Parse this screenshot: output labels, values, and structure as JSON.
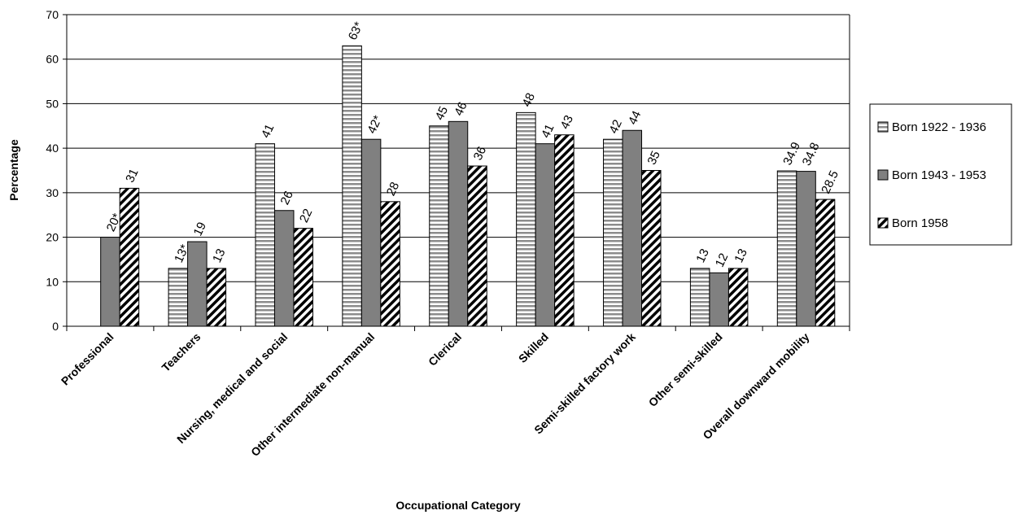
{
  "chart_data": {
    "type": "bar",
    "title": "",
    "xlabel": "Occupational Category",
    "ylabel": "Percentage",
    "ylim": [
      0,
      70
    ],
    "yticks": [
      0,
      10,
      20,
      30,
      40,
      50,
      60,
      70
    ],
    "grid": true,
    "legend_position": "right",
    "categories": [
      "Professional",
      "Teachers",
      "Nursing, medical and social",
      "Other intermediate non-manual",
      "Clerical",
      "Skilled",
      "Semi-skilled factory work",
      "Other semi-skilled",
      "Overall downward mobility"
    ],
    "series": [
      {
        "name": "Born 1922 - 1936",
        "pattern": "horizontal-stripes",
        "values": [
          null,
          13,
          41,
          63,
          45,
          48,
          42,
          13,
          34.9
        ],
        "labels": [
          "",
          "13*",
          "41",
          "63*",
          "45",
          "48",
          "42",
          "13",
          "34.9"
        ]
      },
      {
        "name": "Born 1943 - 1953",
        "pattern": "solid-gray",
        "color": "#808080",
        "values": [
          20,
          19,
          26,
          42,
          46,
          41,
          44,
          12,
          34.8
        ],
        "labels": [
          "20*",
          "19",
          "26",
          "42*",
          "46",
          "41",
          "44",
          "12",
          "34.8"
        ]
      },
      {
        "name": "Born 1958",
        "pattern": "diagonal-stripes",
        "values": [
          31,
          13,
          22,
          28,
          36,
          43,
          35,
          13,
          28.5
        ],
        "labels": [
          "31",
          "13",
          "22",
          "28",
          "36",
          "43",
          "35",
          "13",
          "28.5"
        ]
      }
    ]
  }
}
